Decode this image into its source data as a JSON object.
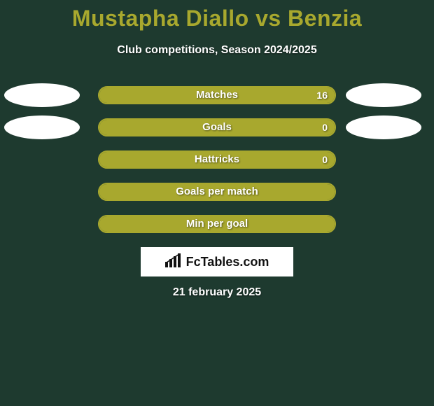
{
  "colors": {
    "background": "#1e3a2f",
    "title": "#a8a82e",
    "subtitle": "#ffffff",
    "bar_border": "#a8a82e",
    "bar_fill": "#a8a82e",
    "bar_track": "transparent",
    "bar_text": "#ffffff",
    "avatar": "#ffffff",
    "logo_bg": "#ffffff",
    "logo_text": "#111111",
    "date": "#ffffff"
  },
  "typography": {
    "title_fontsize": 32,
    "subtitle_fontsize": 16,
    "bar_label_fontsize": 15,
    "date_fontsize": 16
  },
  "title": "Mustapha Diallo vs Benzia",
  "subtitle": "Club competitions, Season 2024/2025",
  "stats": [
    {
      "label": "Matches",
      "value_text": "16",
      "fill_pct": 100,
      "show_value": true,
      "show_avatars": true
    },
    {
      "label": "Goals",
      "value_text": "0",
      "fill_pct": 100,
      "show_value": true,
      "show_avatars": true
    },
    {
      "label": "Hattricks",
      "value_text": "0",
      "fill_pct": 100,
      "show_value": true,
      "show_avatars": false
    },
    {
      "label": "Goals per match",
      "value_text": "",
      "fill_pct": 100,
      "show_value": false,
      "show_avatars": false
    },
    {
      "label": "Min per goal",
      "value_text": "",
      "fill_pct": 100,
      "show_value": false,
      "show_avatars": false
    }
  ],
  "logo": {
    "text": "FcTables.com"
  },
  "date": "21 february 2025"
}
